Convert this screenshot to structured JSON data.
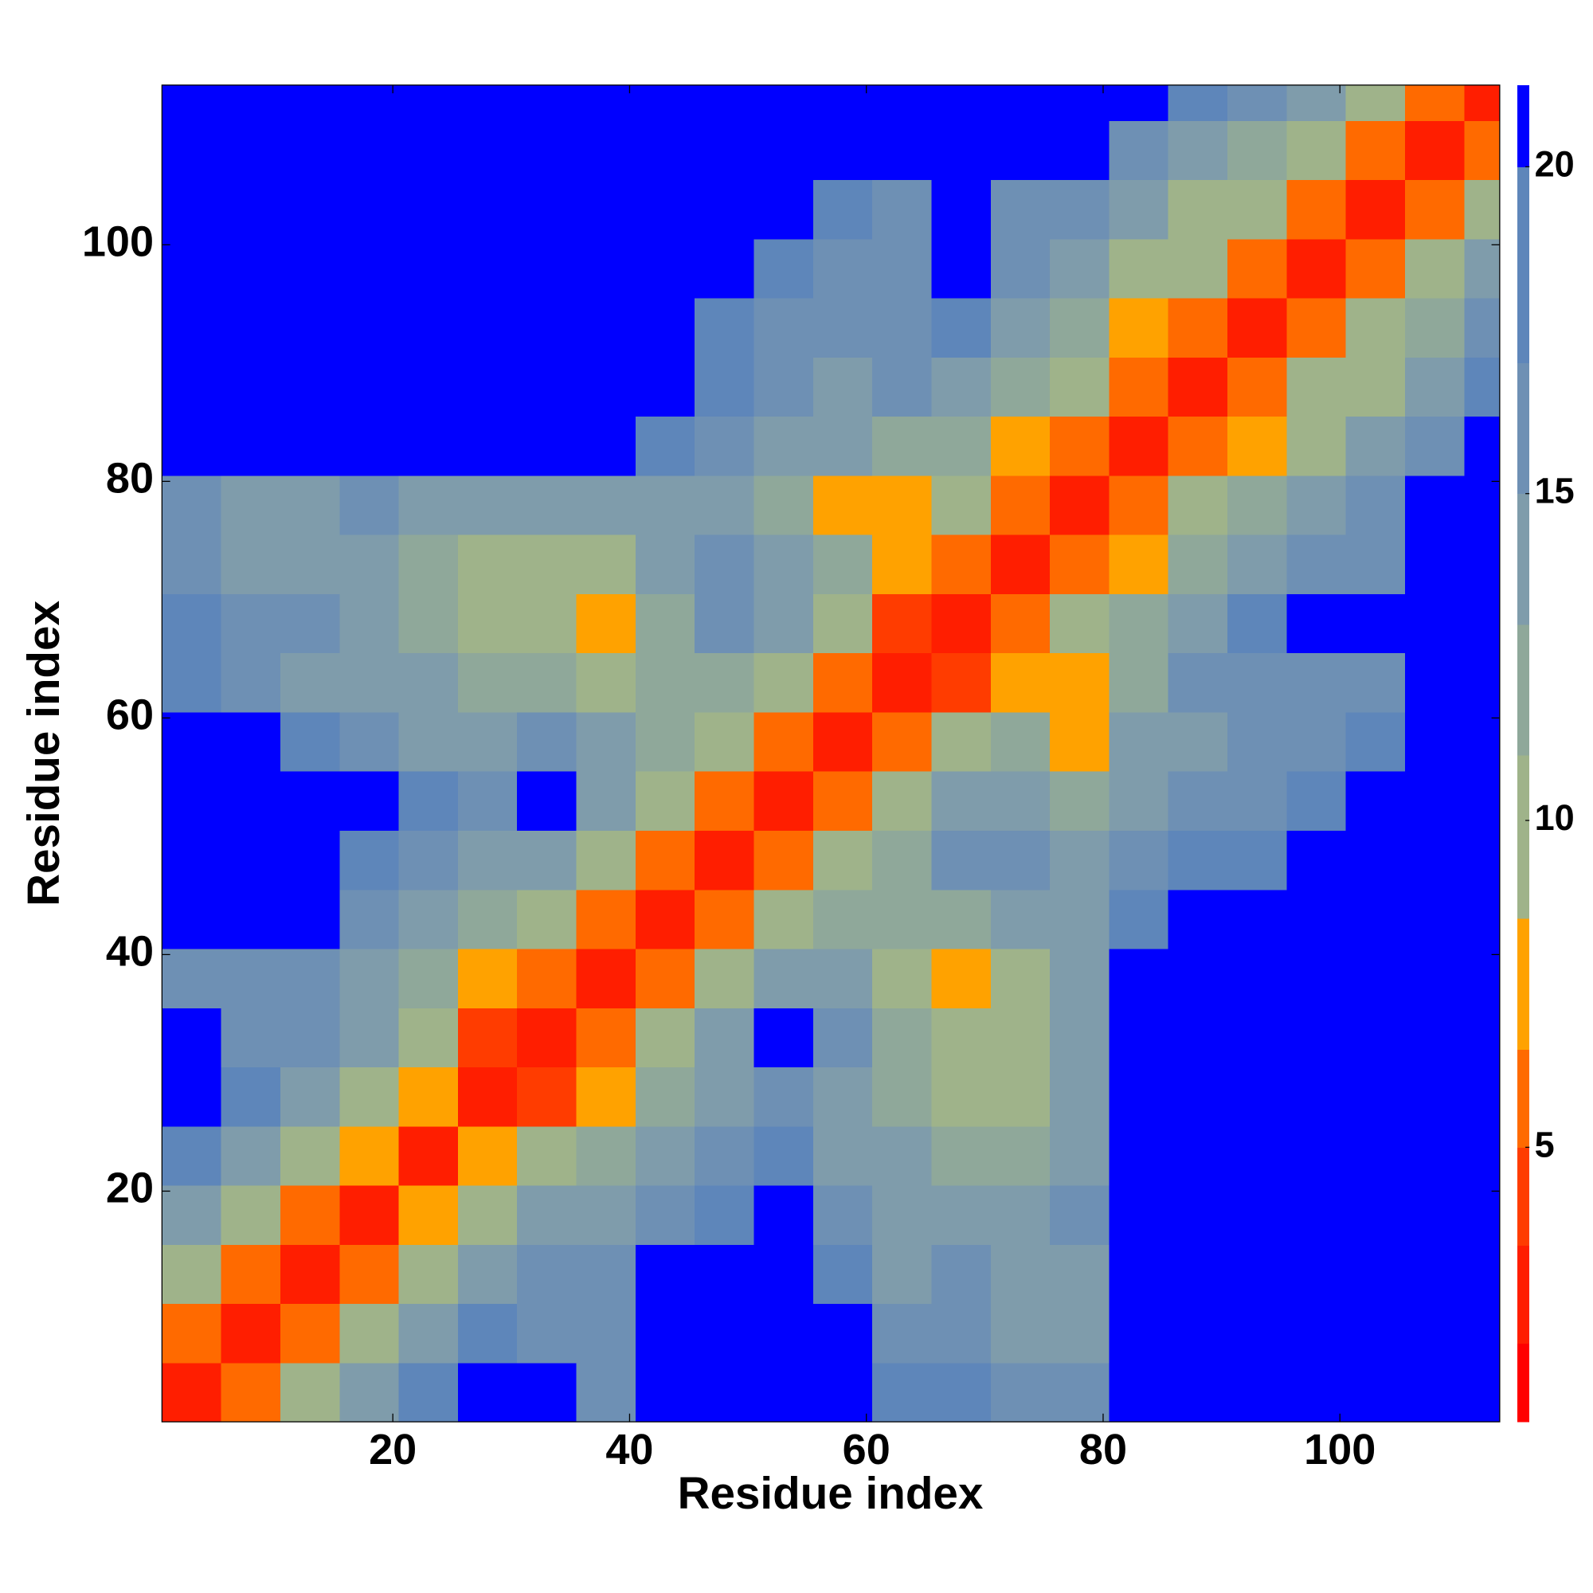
{
  "chart_data": {
    "type": "heatmap",
    "xlabel": "Residue index",
    "ylabel": "Residue index",
    "xlim": [
      0.5,
      113.5
    ],
    "ylim": [
      0.5,
      113.5
    ],
    "xticks": [
      20,
      40,
      60,
      80,
      100
    ],
    "yticks": [
      20,
      40,
      60,
      80,
      100
    ],
    "x_bins": [
      0.5,
      5.5,
      10.5,
      15.5,
      20.5,
      25.5,
      30.5,
      35.5,
      40.5,
      45.5,
      50.5,
      55.5,
      60.5,
      65.5,
      70.5,
      75.5,
      80.5,
      85.5,
      90.5,
      95.5,
      100.5,
      105.5,
      110.5,
      113.5
    ],
    "y_bins": [
      0.5,
      5.5,
      10.5,
      15.5,
      20.5,
      25.5,
      30.5,
      35.5,
      40.5,
      45.5,
      50.5,
      55.5,
      60.5,
      65.5,
      70.5,
      75.5,
      80.5,
      85.5,
      90.5,
      95.5,
      100.5,
      105.5,
      110.5,
      113.5
    ],
    "z": [
      [
        3,
        6,
        10,
        14,
        19,
        21,
        21,
        17,
        21,
        21,
        21,
        21,
        18,
        19,
        17,
        16,
        21,
        21,
        21,
        21,
        21,
        21,
        21
      ],
      [
        6,
        3,
        6,
        10,
        15,
        18,
        17,
        16,
        21,
        21,
        21,
        21,
        16,
        16,
        15,
        15,
        21,
        21,
        21,
        21,
        21,
        21,
        21
      ],
      [
        10,
        6,
        3,
        6,
        10,
        14,
        16,
        16,
        21,
        21,
        21,
        18,
        15,
        16,
        14,
        15,
        21,
        21,
        21,
        21,
        21,
        21,
        21
      ],
      [
        14,
        10,
        6,
        3,
        7,
        11,
        14,
        14,
        17,
        19,
        21,
        16,
        14,
        15,
        14,
        16,
        21,
        21,
        21,
        21,
        21,
        21,
        21
      ],
      [
        19,
        15,
        10,
        7,
        3,
        7,
        9,
        12,
        15,
        16,
        18,
        15,
        14,
        12,
        13,
        15,
        21,
        21,
        21,
        21,
        21,
        21,
        21
      ],
      [
        21,
        18,
        14,
        11,
        7,
        3,
        5,
        7,
        12,
        15,
        17,
        14,
        12,
        11,
        11,
        14,
        21,
        21,
        21,
        21,
        21,
        21,
        21
      ],
      [
        21,
        17,
        16,
        14,
        9,
        5,
        3,
        6,
        10,
        14,
        21,
        16,
        12,
        9,
        10,
        14,
        21,
        21,
        21,
        21,
        21,
        21,
        21
      ],
      [
        17,
        16,
        16,
        14,
        12,
        7,
        6,
        3,
        6,
        11,
        14,
        14,
        9,
        8,
        11,
        14,
        21,
        21,
        21,
        21,
        21,
        21,
        21
      ],
      [
        21,
        21,
        21,
        17,
        15,
        12,
        10,
        6,
        3,
        6,
        9,
        12,
        12,
        13,
        15,
        14,
        19,
        21,
        21,
        21,
        21,
        21,
        21
      ],
      [
        21,
        21,
        21,
        19,
        16,
        15,
        14,
        11,
        6,
        3,
        6,
        9,
        12,
        16,
        16,
        14,
        17,
        19,
        19,
        21,
        21,
        21,
        21
      ],
      [
        21,
        21,
        21,
        21,
        18,
        17,
        21,
        14,
        9,
        6,
        3,
        6,
        10,
        14,
        15,
        12,
        15,
        16,
        17,
        20,
        21,
        21,
        21
      ],
      [
        21,
        21,
        18,
        16,
        15,
        14,
        16,
        14,
        12,
        9,
        6,
        3,
        6,
        10,
        12,
        8,
        14,
        15,
        16,
        17,
        20,
        21,
        21
      ],
      [
        18,
        16,
        15,
        14,
        14,
        12,
        12,
        9,
        12,
        12,
        10,
        6,
        3,
        5,
        7,
        7,
        13,
        16,
        17,
        16,
        17,
        21,
        21
      ],
      [
        19,
        16,
        16,
        15,
        12,
        11,
        9,
        8,
        13,
        16,
        14,
        10,
        5,
        3,
        6,
        9,
        12,
        14,
        19,
        21,
        21,
        21,
        21
      ],
      [
        17,
        15,
        14,
        14,
        13,
        11,
        10,
        11,
        15,
        16,
        15,
        12,
        7,
        6,
        3,
        6,
        8,
        12,
        15,
        16,
        17,
        21,
        21
      ],
      [
        16,
        15,
        15,
        16,
        15,
        14,
        14,
        14,
        14,
        14,
        12,
        8,
        7,
        9,
        6,
        3,
        6,
        10,
        13,
        14,
        16,
        21,
        21
      ],
      [
        21,
        21,
        21,
        21,
        21,
        21,
        21,
        21,
        19,
        17,
        15,
        14,
        13,
        12,
        8,
        6,
        3,
        6,
        7,
        11,
        14,
        17,
        21
      ],
      [
        21,
        21,
        21,
        21,
        21,
        21,
        21,
        21,
        21,
        19,
        16,
        15,
        16,
        14,
        12,
        10,
        6,
        3,
        6,
        9,
        9,
        14,
        19
      ],
      [
        21,
        21,
        21,
        21,
        21,
        21,
        21,
        21,
        21,
        19,
        17,
        16,
        17,
        19,
        15,
        13,
        7,
        6,
        3,
        6,
        10,
        13,
        17
      ],
      [
        21,
        21,
        21,
        21,
        21,
        21,
        21,
        21,
        21,
        21,
        20,
        17,
        16,
        21,
        16,
        14,
        11,
        9,
        6,
        3,
        6,
        10,
        15
      ],
      [
        21,
        21,
        21,
        21,
        21,
        21,
        21,
        21,
        21,
        21,
        21,
        20,
        17,
        21,
        17,
        16,
        14,
        9,
        10,
        6,
        3,
        6,
        10
      ],
      [
        21,
        21,
        21,
        21,
        21,
        21,
        21,
        21,
        21,
        21,
        21,
        21,
        21,
        21,
        21,
        21,
        17,
        14,
        13,
        10,
        6,
        3,
        6
      ],
      [
        21,
        21,
        21,
        21,
        21,
        21,
        21,
        21,
        21,
        21,
        21,
        21,
        21,
        21,
        21,
        21,
        21,
        19,
        17,
        15,
        10,
        6,
        3
      ]
    ],
    "colorbar": {
      "clim": [
        0.8,
        21.25
      ],
      "ticks": [
        5,
        10,
        15,
        20
      ],
      "levels": [
        0.8,
        2,
        3.5,
        5,
        6.5,
        8.5,
        11,
        13,
        15,
        17,
        20,
        21.25
      ],
      "colors": [
        "#ff0000",
        "#ff1e00",
        "#ff3c00",
        "#ff6a00",
        "#ffa200",
        "#9fb38a",
        "#8fa89a",
        "#7f9cab",
        "#6e90b4",
        "#5e86ba",
        "#0000ff"
      ]
    }
  }
}
